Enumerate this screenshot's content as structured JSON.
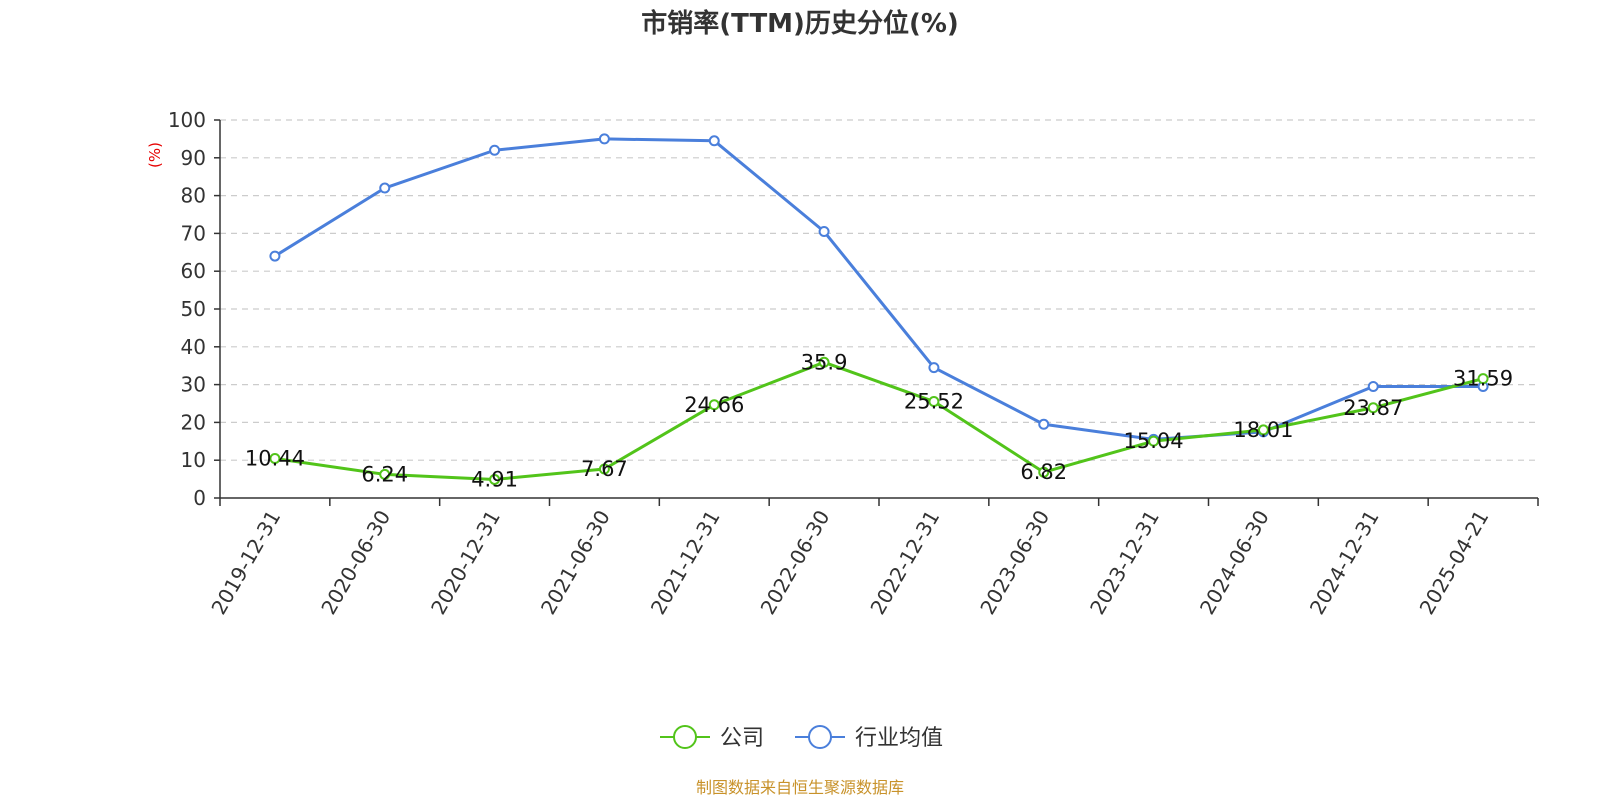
{
  "chart_data": {
    "type": "line",
    "title": "市销率(TTM)历史分位(%)",
    "ylabel": "(%)",
    "xlabel": "",
    "ylim": [
      0,
      100
    ],
    "yticks": [
      0,
      10,
      20,
      30,
      40,
      50,
      60,
      70,
      80,
      90,
      100
    ],
    "grid": true,
    "legend_position": "bottom",
    "categories": [
      "2019-12-31",
      "2020-06-30",
      "2020-12-31",
      "2021-06-30",
      "2021-12-31",
      "2022-06-30",
      "2022-12-31",
      "2023-06-30",
      "2023-12-31",
      "2024-06-30",
      "2024-12-31",
      "2025-04-21"
    ],
    "series": [
      {
        "name": "公司",
        "color": "#52c41a",
        "show_labels": true,
        "values": [
          10.44,
          6.24,
          4.91,
          7.67,
          24.66,
          35.9,
          25.52,
          6.82,
          15.04,
          18.01,
          23.87,
          31.59
        ]
      },
      {
        "name": "行业均值",
        "color": "#4a7fdb",
        "show_labels": false,
        "values": [
          64,
          82,
          92,
          95,
          94.5,
          70.5,
          34.5,
          19.5,
          15.5,
          17.5,
          29.5,
          29.5
        ]
      }
    ]
  },
  "source": "制图数据来自恒生聚源数据库"
}
